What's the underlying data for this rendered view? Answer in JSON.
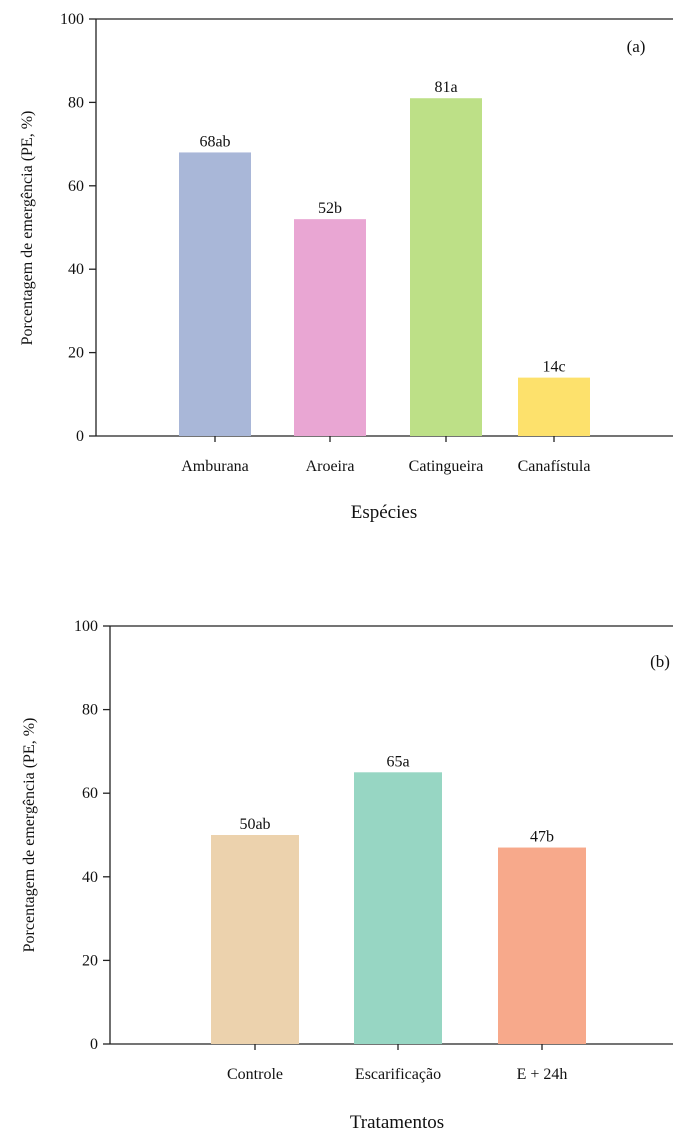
{
  "chart_data": [
    {
      "type": "bar",
      "panel_label": "(a)",
      "categories": [
        "Amburana",
        "Aroeira",
        "Catingueira",
        "Canafístula"
      ],
      "values": [
        68,
        52,
        81,
        14
      ],
      "data_labels": [
        "68ab",
        "52b",
        "81a",
        "14c"
      ],
      "colors": [
        "#a9b7d8",
        "#e9a6d3",
        "#bde087",
        "#fde16c"
      ],
      "xlabel": "Espécies",
      "ylabel": "Porcentagem de emergência (PE, %)",
      "ylim": [
        0,
        100
      ],
      "yticks": [
        "0",
        "20",
        "40",
        "60",
        "80",
        "100"
      ],
      "grid": false
    },
    {
      "type": "bar",
      "panel_label": "(b)",
      "categories": [
        "Controle",
        "Escarificação",
        "E + 24h"
      ],
      "values": [
        50,
        65,
        47
      ],
      "data_labels": [
        "50ab",
        "65a",
        "47b"
      ],
      "colors": [
        "#ecd2ad",
        "#97d6c3",
        "#f7a98b"
      ],
      "xlabel": "Tratamentos",
      "ylabel": "Porcentagem de emergência (PE, %)",
      "ylim": [
        0,
        100
      ],
      "yticks": [
        "0",
        "20",
        "40",
        "60",
        "80",
        "100"
      ],
      "grid": false
    }
  ]
}
